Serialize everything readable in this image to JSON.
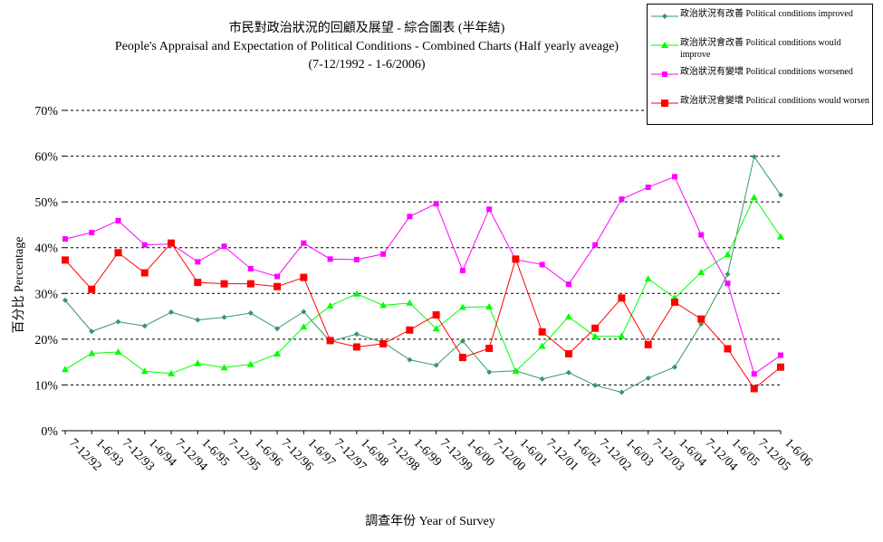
{
  "chart_data": {
    "type": "line",
    "title": "市民對政治狀況的回顧及展望 - 綜合圖表 (半年結)",
    "subtitle": "People's Appraisal and Expectation of Political Conditions - Combined Charts  (Half yearly aveage)",
    "subtitle2": "(7-12/1992 - 1-6/2006)",
    "xlabel": "調查年份 Year of Survey",
    "ylabel": "百分比 Percentage",
    "ylim": [
      0,
      70
    ],
    "yticks": [
      "0%",
      "10%",
      "20%",
      "30%",
      "40%",
      "50%",
      "60%",
      "70%"
    ],
    "grid": true,
    "legend_position": "top-right",
    "categories": [
      "7-12/92",
      "1-6/93",
      "7-12/93",
      "1-6/94",
      "7-12/94",
      "1-6/95",
      "7-12/95",
      "1-6/96",
      "7-12/96",
      "1-6/97",
      "7-12/97",
      "1-6/98",
      "7-12/98",
      "1-6/99",
      "7-12/99",
      "1-6/00",
      "7-12/00",
      "1-6/01",
      "7-12/01",
      "1-6/02",
      "7-12/02",
      "1-6/03",
      "7-12/03",
      "1-6/04",
      "7-12/04",
      "1-6/05",
      "7-12/05",
      "1-6/06"
    ],
    "series": [
      {
        "name": "政治狀況有改善 Political conditions improved",
        "color": "#339966",
        "marker": "diamond",
        "values": [
          28.5,
          21.7,
          23.8,
          22.9,
          25.9,
          24.2,
          24.8,
          25.7,
          22.3,
          26.0,
          19.5,
          21.1,
          19.3,
          15.5,
          14.3,
          19.6,
          12.8,
          13.1,
          11.3,
          12.7,
          9.9,
          8.4,
          11.5,
          13.9,
          23.3,
          34.2,
          59.9,
          51.5
        ]
      },
      {
        "name": "政治狀況會改善 Political conditions would improve",
        "color": "#00ff00",
        "marker": "triangle",
        "values": [
          13.4,
          16.9,
          17.2,
          13.0,
          12.5,
          14.7,
          13.8,
          14.5,
          16.8,
          22.7,
          27.3,
          29.9,
          27.4,
          27.9,
          22.3,
          27.0,
          27.1,
          13.0,
          18.5,
          24.9,
          20.6,
          20.7,
          33.2,
          29.0,
          34.6,
          38.5,
          51.0,
          42.4
        ]
      },
      {
        "name": "政治狀況有變壞 Political conditions worsened",
        "color": "#ff00ff",
        "marker": "square",
        "values": [
          41.9,
          43.3,
          45.9,
          40.6,
          40.8,
          36.9,
          40.3,
          35.4,
          33.7,
          41.0,
          37.5,
          37.4,
          38.6,
          46.8,
          49.6,
          35.0,
          48.4,
          37.4,
          36.3,
          32.0,
          40.6,
          50.6,
          53.2,
          55.5,
          42.8,
          32.2,
          12.4,
          16.5
        ]
      },
      {
        "name": "政治狀況會變壞 Political conditions would worsen",
        "color": "#ff0000",
        "marker": "square",
        "values": [
          37.3,
          30.9,
          38.9,
          34.5,
          41.0,
          32.4,
          32.1,
          32.1,
          31.5,
          33.5,
          19.7,
          18.3,
          19.0,
          22.0,
          25.3,
          16.0,
          18.0,
          37.5,
          21.6,
          16.8,
          22.4,
          29.0,
          18.8,
          28.1,
          24.4,
          17.9,
          9.2,
          13.9
        ]
      }
    ]
  }
}
